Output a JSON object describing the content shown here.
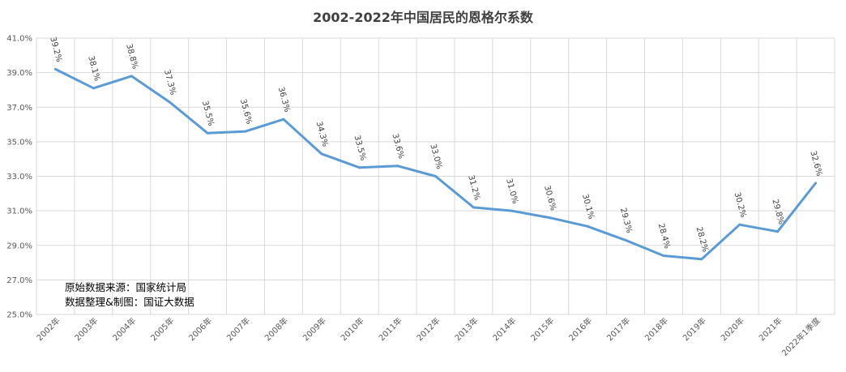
{
  "chart_data": {
    "type": "line",
    "title": "2002-2022年中国居民的恩格尔系数",
    "categories": [
      "2002年",
      "2003年",
      "2004年",
      "2005年",
      "2006年",
      "2007年",
      "2008年",
      "2009年",
      "2010年",
      "2011年",
      "2012年",
      "2013年",
      "2014年",
      "2015年",
      "2016年",
      "2017年",
      "2018年",
      "2019年",
      "2020年",
      "2021年",
      "2022年1季度"
    ],
    "series": [
      {
        "values": [
          39.2,
          38.1,
          38.8,
          37.3,
          35.5,
          35.6,
          36.3,
          34.3,
          33.5,
          33.6,
          33.0,
          31.2,
          31.0,
          30.6,
          30.1,
          29.3,
          28.4,
          28.2,
          30.2,
          29.8,
          32.6
        ],
        "data_labels": [
          "39.2%",
          "38.1%",
          "38.8%",
          "37.3%",
          "35.5%",
          "35.6%",
          "36.3%",
          "34.3%",
          "33.5%",
          "33.6%",
          "33.0%",
          "31.2%",
          "31.0%",
          "30.6%",
          "30.1%",
          "29.3%",
          "28.4%",
          "28.2%",
          "30.2%",
          "29.8%",
          "32.6%"
        ],
        "color": "#5b9bd5"
      }
    ],
    "ylim": [
      25.0,
      41.0
    ],
    "yticks": [
      25.0,
      27.0,
      29.0,
      31.0,
      33.0,
      35.0,
      37.0,
      39.0,
      41.0
    ],
    "ytick_labels": [
      "25.0%",
      "27.0%",
      "29.0%",
      "31.0%",
      "33.0%",
      "35.0%",
      "37.0%",
      "39.0%",
      "41.0%"
    ],
    "grid": true,
    "gridline_color": "#d9d9d9",
    "xlabel": "",
    "ylabel": ""
  },
  "notes": {
    "source": "原始数据来源：国家统计局",
    "credit": "数据整理&制图：国证大数据"
  }
}
